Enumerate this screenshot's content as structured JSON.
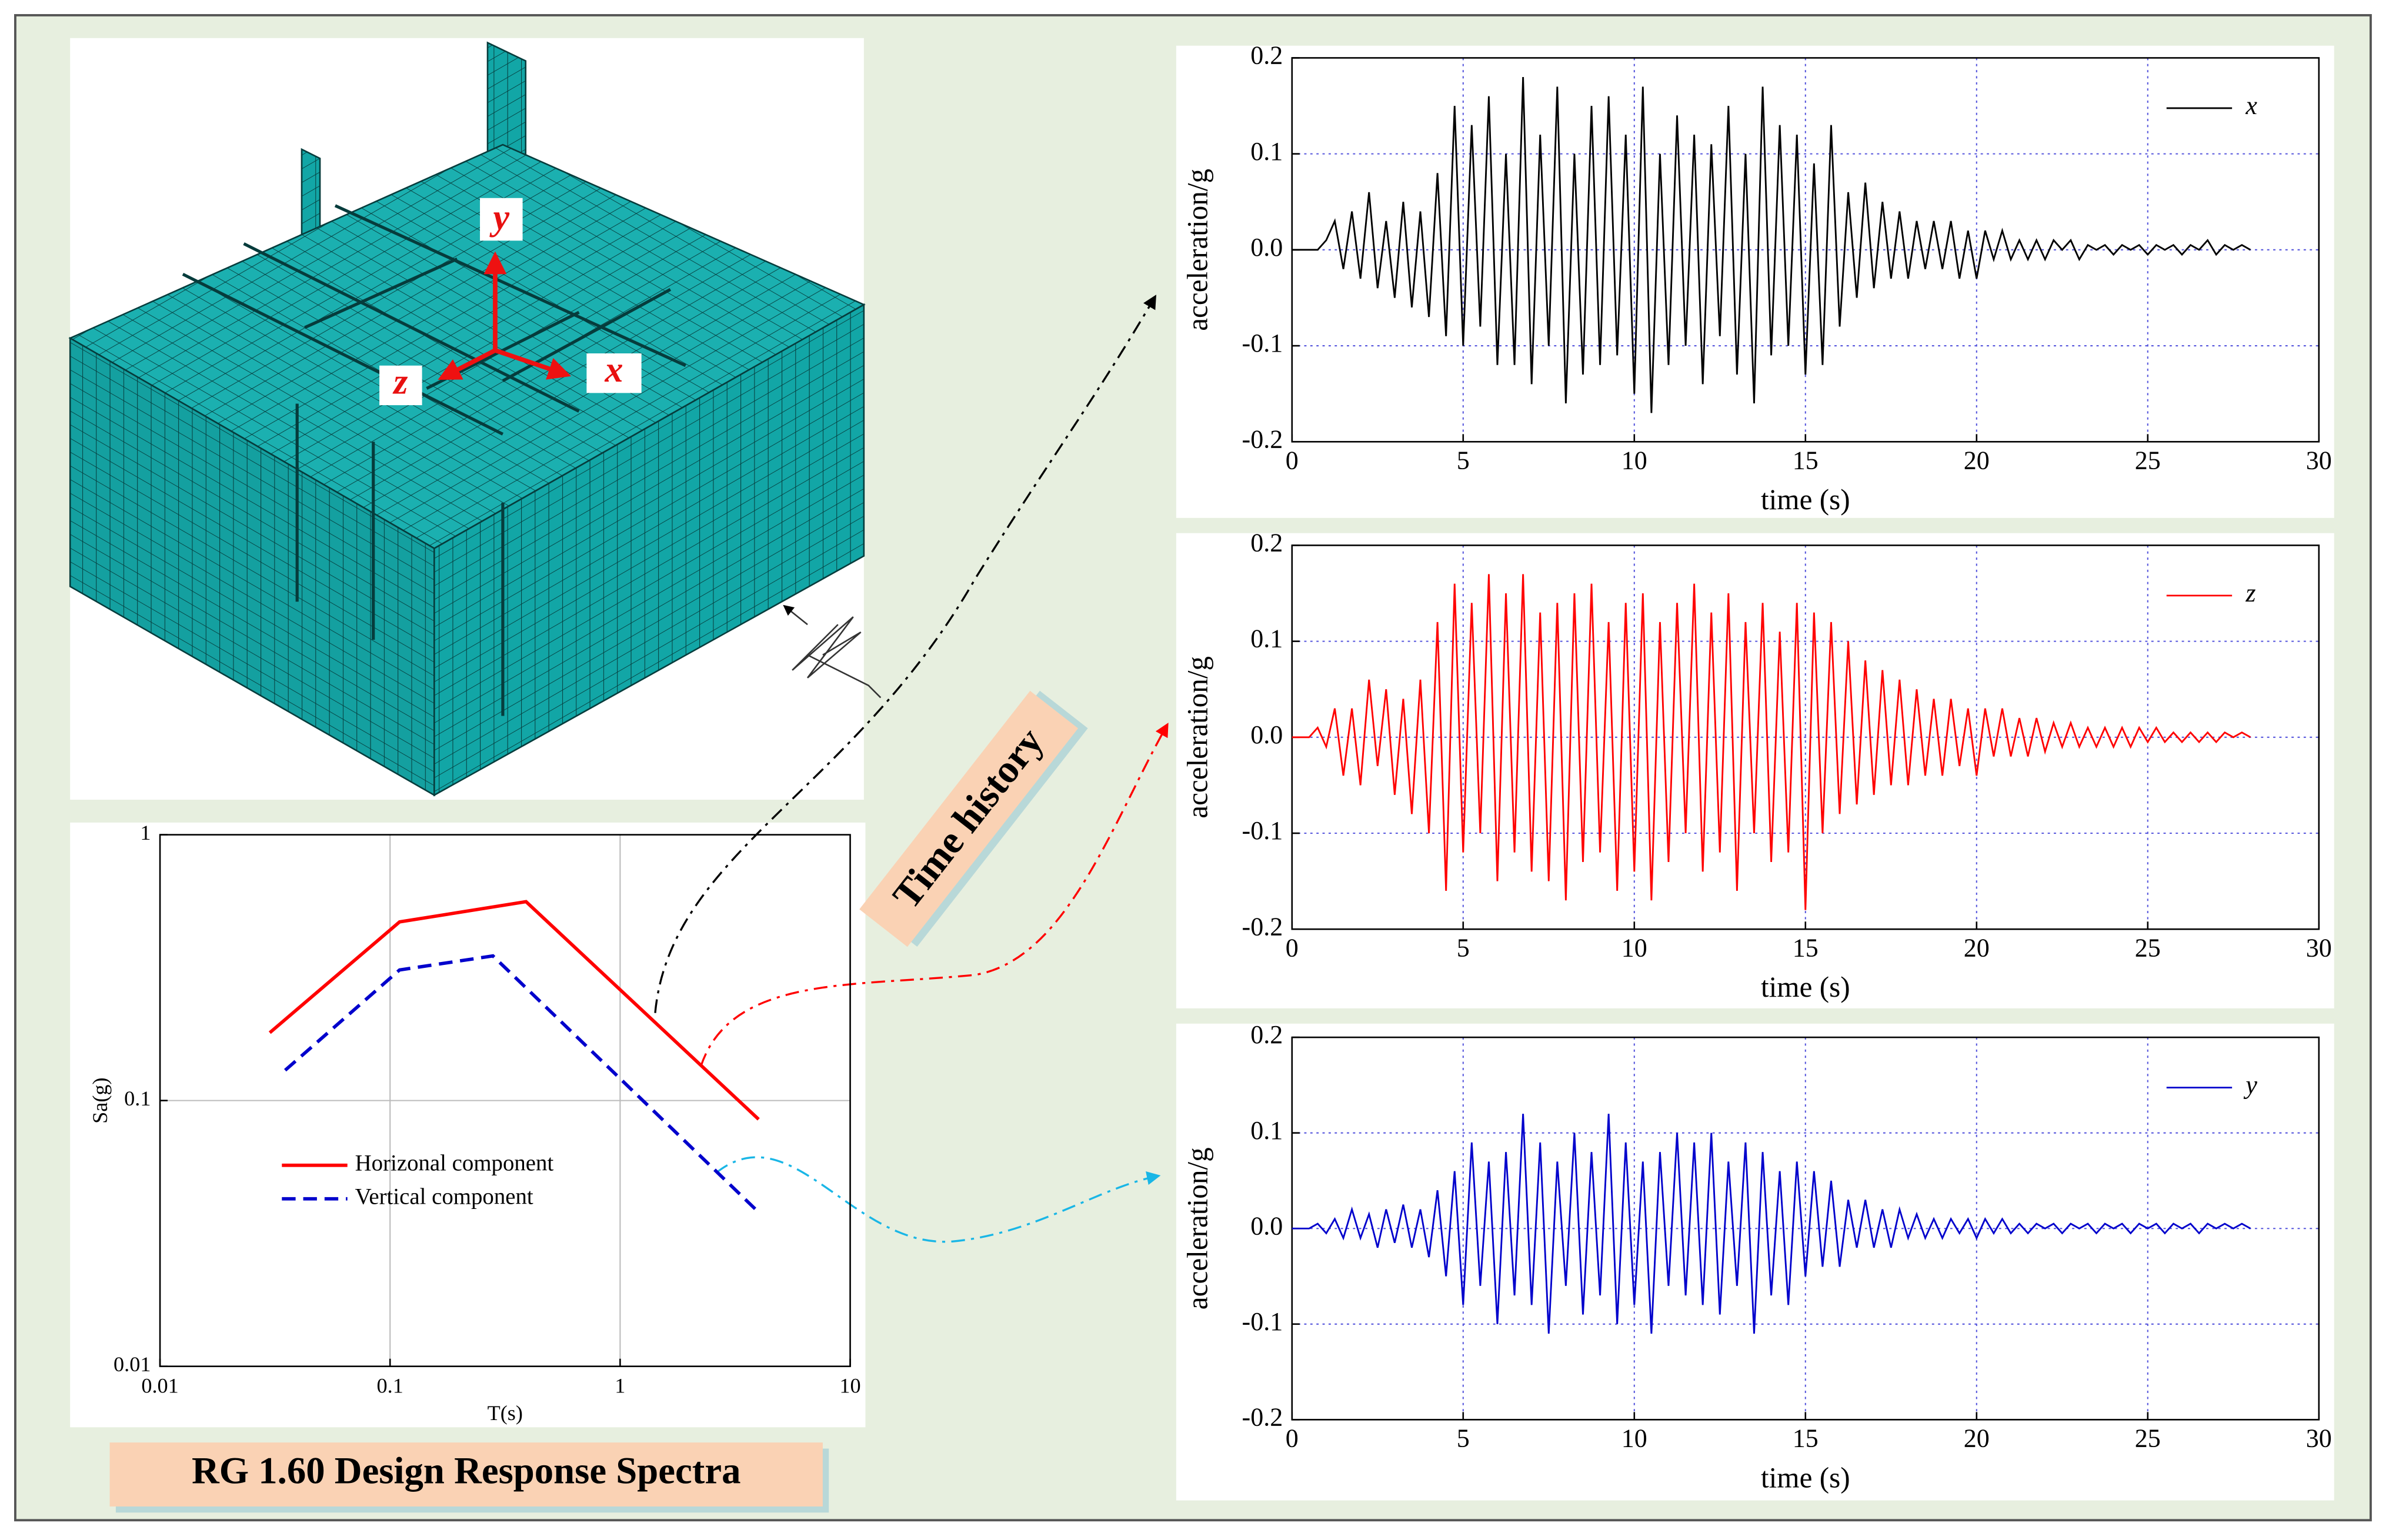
{
  "figure": {
    "mesh_axes": [
      "y",
      "z",
      "x"
    ],
    "time_history_label": "Time history",
    "spectra_label": "RG 1.60 Design Response Spectra"
  },
  "chart_data": [
    {
      "type": "line",
      "xscale": "log",
      "yscale": "log",
      "xlabel": "T(s)",
      "ylabel": "Sa(g)",
      "xlim": [
        0.01,
        10
      ],
      "ylim": [
        0.01,
        1
      ],
      "xticks": [
        0.01,
        0.1,
        1,
        10
      ],
      "yticks": [
        0.01,
        0.1,
        1
      ],
      "grid": true,
      "legend": "lower left",
      "series": [
        {
          "name": "Horizonal component",
          "color": "#ff0000",
          "linestyle": "solid",
          "x": [
            0.03,
            0.11,
            0.39,
            4
          ],
          "values": [
            0.18,
            0.47,
            0.56,
            0.085
          ]
        },
        {
          "name": "Vertical component",
          "color": "#0000cc",
          "linestyle": "dashed",
          "x": [
            0.035,
            0.11,
            0.28,
            4
          ],
          "values": [
            0.13,
            0.31,
            0.35,
            0.038
          ]
        }
      ]
    },
    {
      "type": "line",
      "xlabel": "time (s)",
      "ylabel": "acceleration/g",
      "xlim": [
        0,
        30
      ],
      "ylim": [
        -0.2,
        0.2
      ],
      "xticks": [
        0,
        5,
        10,
        15,
        20,
        25,
        30
      ],
      "yticks": [
        -0.2,
        -0.1,
        {
          "value": 0,
          "label": "0.0"
        },
        0.1,
        0.2
      ],
      "grid": true,
      "legend": "upper right",
      "x": [
        0,
        0.25,
        0.5,
        0.75,
        1,
        1.25,
        1.5,
        1.75,
        2,
        2.25,
        2.5,
        2.75,
        3,
        3.25,
        3.5,
        3.75,
        4,
        4.25,
        4.5,
        4.75,
        5,
        5.25,
        5.5,
        5.75,
        6,
        6.25,
        6.5,
        6.75,
        7,
        7.25,
        7.5,
        7.75,
        8,
        8.25,
        8.5,
        8.75,
        9,
        9.25,
        9.5,
        9.75,
        10,
        10.25,
        10.5,
        10.75,
        11,
        11.25,
        11.5,
        11.75,
        12,
        12.25,
        12.5,
        12.75,
        13,
        13.25,
        13.5,
        13.75,
        14,
        14.25,
        14.5,
        14.75,
        15,
        15.25,
        15.5,
        15.75,
        16,
        16.25,
        16.5,
        16.75,
        17,
        17.25,
        17.5,
        17.75,
        18,
        18.25,
        18.5,
        18.75,
        19,
        19.25,
        19.5,
        19.75,
        20,
        20.25,
        20.5,
        20.75,
        21,
        21.25,
        21.5,
        21.75,
        22,
        22.25,
        22.5,
        22.75,
        23,
        23.25,
        23.5,
        23.75,
        24,
        24.25,
        24.5,
        24.75,
        25,
        25.25,
        25.5,
        25.75,
        26,
        26.25,
        26.5,
        26.75,
        27,
        27.25,
        27.5,
        27.75,
        28
      ],
      "series": [
        {
          "name": "x",
          "color": "#000000",
          "values": [
            0,
            0,
            0,
            0,
            0.01,
            0.03,
            -0.02,
            0.04,
            -0.03,
            0.06,
            -0.04,
            0.03,
            -0.05,
            0.05,
            -0.06,
            0.04,
            -0.07,
            0.08,
            -0.09,
            0.15,
            -0.1,
            0.13,
            -0.08,
            0.16,
            -0.12,
            0.1,
            -0.12,
            0.18,
            -0.14,
            0.12,
            -0.1,
            0.17,
            -0.16,
            0.1,
            -0.13,
            0.15,
            -0.12,
            0.16,
            -0.11,
            0.12,
            -0.15,
            0.17,
            -0.17,
            0.1,
            -0.12,
            0.14,
            -0.1,
            0.12,
            -0.14,
            0.11,
            -0.09,
            0.15,
            -0.13,
            0.1,
            -0.16,
            0.17,
            -0.11,
            0.13,
            -0.1,
            0.12,
            -0.13,
            0.09,
            -0.12,
            0.13,
            -0.08,
            0.06,
            -0.05,
            0.07,
            -0.04,
            0.05,
            -0.03,
            0.04,
            -0.03,
            0.03,
            -0.02,
            0.03,
            -0.02,
            0.03,
            -0.03,
            0.02,
            -0.03,
            0.02,
            -0.01,
            0.02,
            -0.01,
            0.01,
            -0.01,
            0.01,
            -0.01,
            0.01,
            0,
            0.01,
            -0.01,
            0.005,
            0,
            0.005,
            -0.005,
            0.005,
            0,
            0.005,
            -0.005,
            0.005,
            0,
            0.005,
            -0.005,
            0.005,
            0,
            0.01,
            -0.005,
            0.005,
            0,
            0.005,
            0
          ]
        }
      ]
    },
    {
      "type": "line",
      "xlabel": "time (s)",
      "ylabel": "acceleration/g",
      "xlim": [
        0,
        30
      ],
      "ylim": [
        -0.2,
        0.2
      ],
      "xticks": [
        0,
        5,
        10,
        15,
        20,
        25,
        30
      ],
      "yticks": [
        -0.2,
        -0.1,
        {
          "value": 0,
          "label": "0.0"
        },
        0.1,
        0.2
      ],
      "grid": true,
      "legend": "upper right",
      "x": [
        0,
        0.25,
        0.5,
        0.75,
        1,
        1.25,
        1.5,
        1.75,
        2,
        2.25,
        2.5,
        2.75,
        3,
        3.25,
        3.5,
        3.75,
        4,
        4.25,
        4.5,
        4.75,
        5,
        5.25,
        5.5,
        5.75,
        6,
        6.25,
        6.5,
        6.75,
        7,
        7.25,
        7.5,
        7.75,
        8,
        8.25,
        8.5,
        8.75,
        9,
        9.25,
        9.5,
        9.75,
        10,
        10.25,
        10.5,
        10.75,
        11,
        11.25,
        11.5,
        11.75,
        12,
        12.25,
        12.5,
        12.75,
        13,
        13.25,
        13.5,
        13.75,
        14,
        14.25,
        14.5,
        14.75,
        15,
        15.25,
        15.5,
        15.75,
        16,
        16.25,
        16.5,
        16.75,
        17,
        17.25,
        17.5,
        17.75,
        18,
        18.25,
        18.5,
        18.75,
        19,
        19.25,
        19.5,
        19.75,
        20,
        20.25,
        20.5,
        20.75,
        21,
        21.25,
        21.5,
        21.75,
        22,
        22.25,
        22.5,
        22.75,
        23,
        23.25,
        23.5,
        23.75,
        24,
        24.25,
        24.5,
        24.75,
        25,
        25.25,
        25.5,
        25.75,
        26,
        26.25,
        26.5,
        26.75,
        27,
        27.25,
        27.5,
        27.75,
        28
      ],
      "series": [
        {
          "name": "z",
          "color": "#ff0000",
          "values": [
            0,
            0,
            0,
            0.01,
            -0.01,
            0.03,
            -0.04,
            0.03,
            -0.05,
            0.06,
            -0.03,
            0.05,
            -0.06,
            0.04,
            -0.08,
            0.06,
            -0.1,
            0.12,
            -0.16,
            0.16,
            -0.12,
            0.14,
            -0.1,
            0.17,
            -0.15,
            0.15,
            -0.12,
            0.17,
            -0.14,
            0.13,
            -0.15,
            0.14,
            -0.17,
            0.15,
            -0.13,
            0.16,
            -0.12,
            0.12,
            -0.16,
            0.14,
            -0.14,
            0.15,
            -0.17,
            0.12,
            -0.13,
            0.14,
            -0.1,
            0.16,
            -0.14,
            0.13,
            -0.12,
            0.15,
            -0.16,
            0.12,
            -0.1,
            0.14,
            -0.13,
            0.11,
            -0.12,
            0.14,
            -0.18,
            0.13,
            -0.1,
            0.12,
            -0.08,
            0.1,
            -0.07,
            0.08,
            -0.06,
            0.07,
            -0.05,
            0.06,
            -0.05,
            0.05,
            -0.04,
            0.04,
            -0.04,
            0.04,
            -0.03,
            0.03,
            -0.04,
            0.03,
            -0.02,
            0.03,
            -0.02,
            0.02,
            -0.02,
            0.02,
            -0.015,
            0.015,
            -0.01,
            0.015,
            -0.01,
            0.01,
            -0.01,
            0.01,
            -0.01,
            0.01,
            -0.01,
            0.01,
            -0.005,
            0.01,
            -0.005,
            0.005,
            -0.005,
            0.005,
            -0.005,
            0.005,
            -0.005,
            0.005,
            0,
            0.005,
            0
          ]
        }
      ]
    },
    {
      "type": "line",
      "xlabel": "time (s)",
      "ylabel": "acceleration/g",
      "xlim": [
        0,
        30
      ],
      "ylim": [
        -0.2,
        0.2
      ],
      "xticks": [
        0,
        5,
        10,
        15,
        20,
        25,
        30
      ],
      "yticks": [
        -0.2,
        -0.1,
        {
          "value": 0,
          "label": "0.0"
        },
        0.1,
        0.2
      ],
      "grid": true,
      "legend": "upper right",
      "x": [
        0,
        0.25,
        0.5,
        0.75,
        1,
        1.25,
        1.5,
        1.75,
        2,
        2.25,
        2.5,
        2.75,
        3,
        3.25,
        3.5,
        3.75,
        4,
        4.25,
        4.5,
        4.75,
        5,
        5.25,
        5.5,
        5.75,
        6,
        6.25,
        6.5,
        6.75,
        7,
        7.25,
        7.5,
        7.75,
        8,
        8.25,
        8.5,
        8.75,
        9,
        9.25,
        9.5,
        9.75,
        10,
        10.25,
        10.5,
        10.75,
        11,
        11.25,
        11.5,
        11.75,
        12,
        12.25,
        12.5,
        12.75,
        13,
        13.25,
        13.5,
        13.75,
        14,
        14.25,
        14.5,
        14.75,
        15,
        15.25,
        15.5,
        15.75,
        16,
        16.25,
        16.5,
        16.75,
        17,
        17.25,
        17.5,
        17.75,
        18,
        18.25,
        18.5,
        18.75,
        19,
        19.25,
        19.5,
        19.75,
        20,
        20.25,
        20.5,
        20.75,
        21,
        21.25,
        21.5,
        21.75,
        22,
        22.25,
        22.5,
        22.75,
        23,
        23.25,
        23.5,
        23.75,
        24,
        24.25,
        24.5,
        24.75,
        25,
        25.25,
        25.5,
        25.75,
        26,
        26.25,
        26.5,
        26.75,
        27,
        27.25,
        27.5,
        27.75,
        28
      ],
      "series": [
        {
          "name": "y",
          "color": "#0000cc",
          "values": [
            0,
            0,
            0,
            0.005,
            -0.005,
            0.01,
            -0.01,
            0.02,
            -0.01,
            0.015,
            -0.02,
            0.02,
            -0.015,
            0.025,
            -0.02,
            0.02,
            -0.03,
            0.04,
            -0.05,
            0.06,
            -0.08,
            0.09,
            -0.06,
            0.07,
            -0.1,
            0.08,
            -0.07,
            0.12,
            -0.08,
            0.09,
            -0.11,
            0.07,
            -0.06,
            0.1,
            -0.09,
            0.08,
            -0.07,
            0.12,
            -0.1,
            0.09,
            -0.08,
            0.07,
            -0.11,
            0.08,
            -0.06,
            0.1,
            -0.07,
            0.09,
            -0.08,
            0.1,
            -0.09,
            0.07,
            -0.06,
            0.09,
            -0.11,
            0.08,
            -0.07,
            0.06,
            -0.08,
            0.07,
            -0.05,
            0.06,
            -0.04,
            0.05,
            -0.04,
            0.03,
            -0.02,
            0.03,
            -0.02,
            0.02,
            -0.02,
            0.02,
            -0.01,
            0.015,
            -0.01,
            0.01,
            -0.01,
            0.01,
            -0.005,
            0.01,
            -0.01,
            0.01,
            -0.005,
            0.01,
            -0.005,
            0.005,
            -0.005,
            0.005,
            0,
            0.005,
            -0.005,
            0.005,
            0,
            0.005,
            -0.005,
            0.005,
            0,
            0.005,
            -0.005,
            0.005,
            0,
            0.005,
            -0.005,
            0.005,
            0,
            0.005,
            -0.005,
            0.005,
            0,
            0.005,
            0,
            0.005,
            0
          ]
        }
      ]
    }
  ]
}
